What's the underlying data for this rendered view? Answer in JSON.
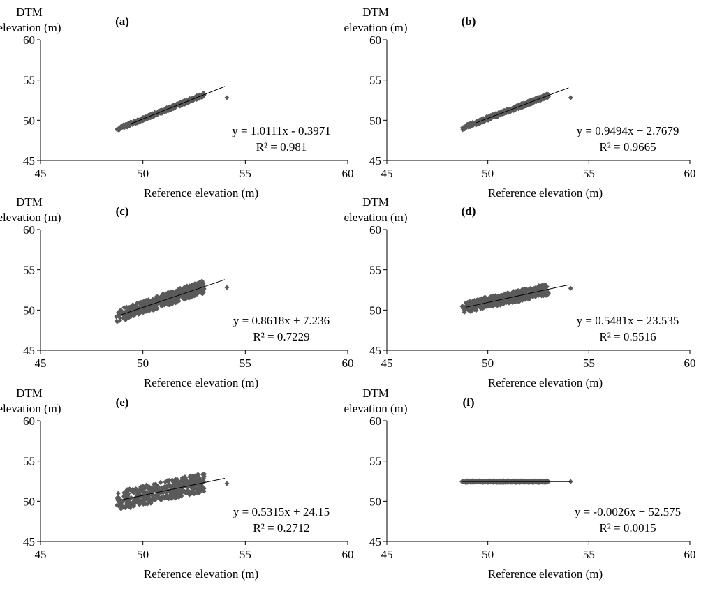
{
  "figure": {
    "marker_color": "#5a5a5a",
    "line_color": "#000000",
    "axis_color": "#000000"
  },
  "chart_data": [
    {
      "type": "scatter",
      "panel_label": "(a)",
      "ylabel_line1": "DTM",
      "ylabel_line2": "elevation (m)",
      "xlabel": "Reference elevation (m)",
      "xlim": [
        45,
        60
      ],
      "ylim": [
        45,
        60
      ],
      "xticks": [
        45,
        50,
        55,
        60
      ],
      "yticks": [
        45,
        50,
        55,
        60
      ],
      "equation": "y = 1.0111x - 0.3971",
      "r2": "R² = 0.981",
      "slope": 1.0111,
      "intercept": -0.3971,
      "fit_x": [
        49.4,
        54.0
      ],
      "cloud": {
        "x_min": 48.7,
        "x_max": 53.0,
        "spread": 0.45,
        "outlier": [
          54.1,
          52.8
        ]
      }
    },
    {
      "type": "scatter",
      "panel_label": "(b)",
      "ylabel_line1": "DTM",
      "ylabel_line2": "elevation (m)",
      "xlabel": "Reference elevation (m)",
      "xlim": [
        45,
        60
      ],
      "ylim": [
        45,
        60
      ],
      "xticks": [
        45,
        50,
        55,
        60
      ],
      "yticks": [
        45,
        50,
        55,
        60
      ],
      "equation": "y = 0.9494x + 2.7679",
      "r2": "R² = 0.9665",
      "slope": 0.9494,
      "intercept": 2.7679,
      "fit_x": [
        49.4,
        54.0
      ],
      "cloud": {
        "x_min": 48.7,
        "x_max": 53.0,
        "spread": 0.5,
        "outlier": [
          54.1,
          52.8
        ]
      }
    },
    {
      "type": "scatter",
      "panel_label": "(c)",
      "ylabel_line1": "DTM",
      "ylabel_line2": "elevation (m)",
      "xlabel": "Reference elevation (m)",
      "xlim": [
        45,
        60
      ],
      "ylim": [
        45,
        60
      ],
      "xticks": [
        45,
        50,
        55,
        60
      ],
      "yticks": [
        45,
        50,
        55,
        60
      ],
      "equation": "y = 0.8618x + 7.236",
      "r2": "R² = 0.7229",
      "slope": 0.8618,
      "intercept": 7.236,
      "fit_x": [
        48.9,
        54.0
      ],
      "cloud": {
        "x_min": 48.7,
        "x_max": 53.0,
        "spread": 1.6,
        "outlier": [
          54.1,
          52.8
        ]
      }
    },
    {
      "type": "scatter",
      "panel_label": "(d)",
      "ylabel_line1": "DTM",
      "ylabel_line2": "elevation (m)",
      "xlabel": "Reference elevation (m)",
      "xlim": [
        45,
        60
      ],
      "ylim": [
        45,
        60
      ],
      "xticks": [
        45,
        50,
        55,
        60
      ],
      "yticks": [
        45,
        50,
        55,
        60
      ],
      "equation": "y = 0.5481x + 23.535",
      "r2": "R² = 0.5516",
      "slope": 0.5481,
      "intercept": 23.535,
      "fit_x": [
        48.9,
        54.0
      ],
      "cloud": {
        "x_min": 48.7,
        "x_max": 53.0,
        "spread": 1.4,
        "outlier": [
          54.1,
          52.7
        ]
      }
    },
    {
      "type": "scatter",
      "panel_label": "(e)",
      "ylabel_line1": "DTM",
      "ylabel_line2": "elevation (m)",
      "xlabel": "Reference elevation (m)",
      "xlim": [
        45,
        60
      ],
      "ylim": [
        45,
        60
      ],
      "xticks": [
        45,
        50,
        55,
        60
      ],
      "yticks": [
        45,
        50,
        55,
        60
      ],
      "equation": "y = 0.5315x + 24.15",
      "r2": "R² = 0.2712",
      "slope": 0.5315,
      "intercept": 24.15,
      "fit_x": [
        48.9,
        54.0
      ],
      "cloud": {
        "x_min": 48.7,
        "x_max": 53.0,
        "spread": 2.4,
        "outlier": [
          54.1,
          52.2
        ]
      }
    },
    {
      "type": "scatter",
      "panel_label": "(f)",
      "ylabel_line1": "DTM",
      "ylabel_line2": "elevation (m)",
      "xlabel": "Reference elevation (m)",
      "xlim": [
        45,
        60
      ],
      "ylim": [
        45,
        60
      ],
      "xticks": [
        45,
        50,
        55,
        60
      ],
      "yticks": [
        45,
        50,
        55,
        60
      ],
      "equation": "y = -0.0026x + 52.575",
      "r2": "R² = 0.0015",
      "slope": -0.0026,
      "intercept": 52.575,
      "fit_x": [
        48.7,
        54.1
      ],
      "cloud": {
        "x_min": 48.7,
        "x_max": 53.0,
        "spread": 0.2,
        "outlier": [
          54.1,
          52.45
        ]
      }
    }
  ]
}
